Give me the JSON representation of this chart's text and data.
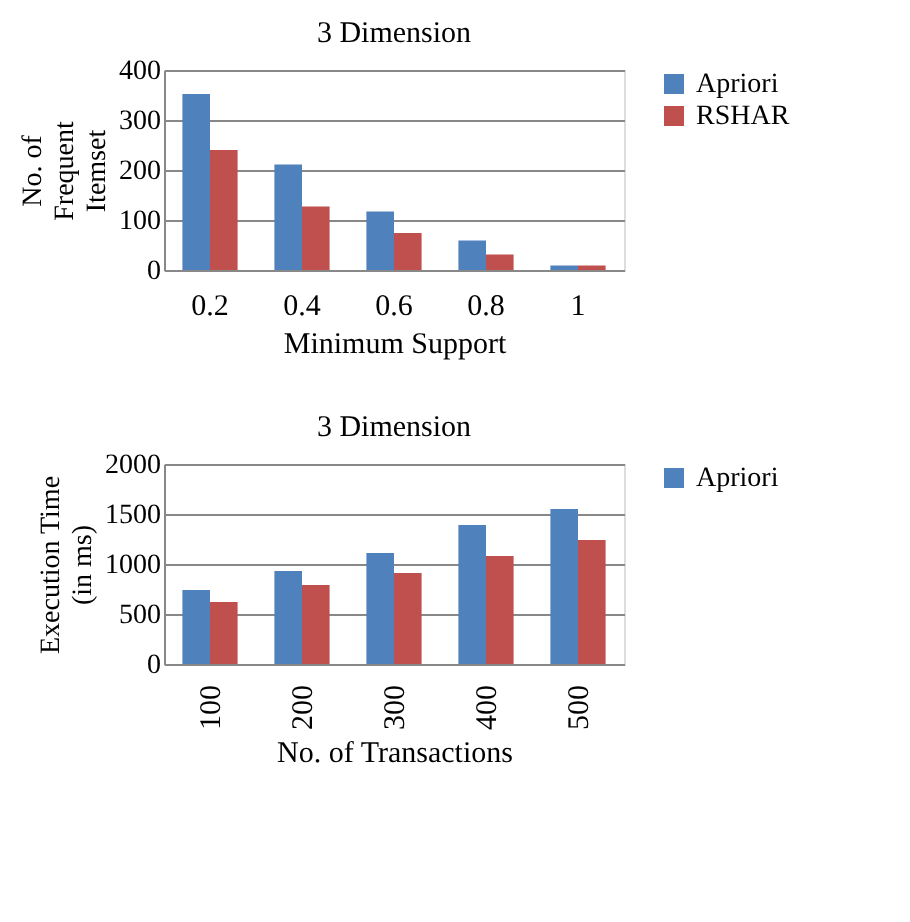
{
  "chart_data": [
    {
      "type": "bar",
      "title": "3 Dimension",
      "xlabel": "Minimum Support",
      "ylabel": "No. of Frequent Itemset",
      "categories": [
        "0.2",
        "0.4",
        "0.6",
        "0.8",
        "1"
      ],
      "series": [
        {
          "name": "Apriori",
          "color": "#4f81bd",
          "values": [
            352,
            211,
            117,
            59,
            9
          ]
        },
        {
          "name": "RSHAR",
          "color": "#c0504d",
          "values": [
            240,
            127,
            74,
            31,
            9
          ]
        }
      ],
      "ylim": [
        0,
        400
      ],
      "yticks": [
        0,
        100,
        200,
        300,
        400
      ],
      "grid": "y",
      "legend": "right"
    },
    {
      "type": "bar",
      "title": "3 Dimension",
      "xlabel": "No. of Transactions",
      "ylabel": "Execution Time (in ms)",
      "categories": [
        "100",
        "200",
        "300",
        "400",
        "500"
      ],
      "series": [
        {
          "name": "Apriori",
          "color": "#4f81bd",
          "values": [
            740,
            930,
            1110,
            1390,
            1550
          ]
        },
        {
          "color": "#c0504d",
          "values": [
            620,
            790,
            910,
            1080,
            1240
          ]
        }
      ],
      "ylim": [
        0,
        2000
      ],
      "yticks": [
        0,
        500,
        1000,
        1500,
        2000
      ],
      "grid": "y",
      "legend": "right"
    }
  ]
}
